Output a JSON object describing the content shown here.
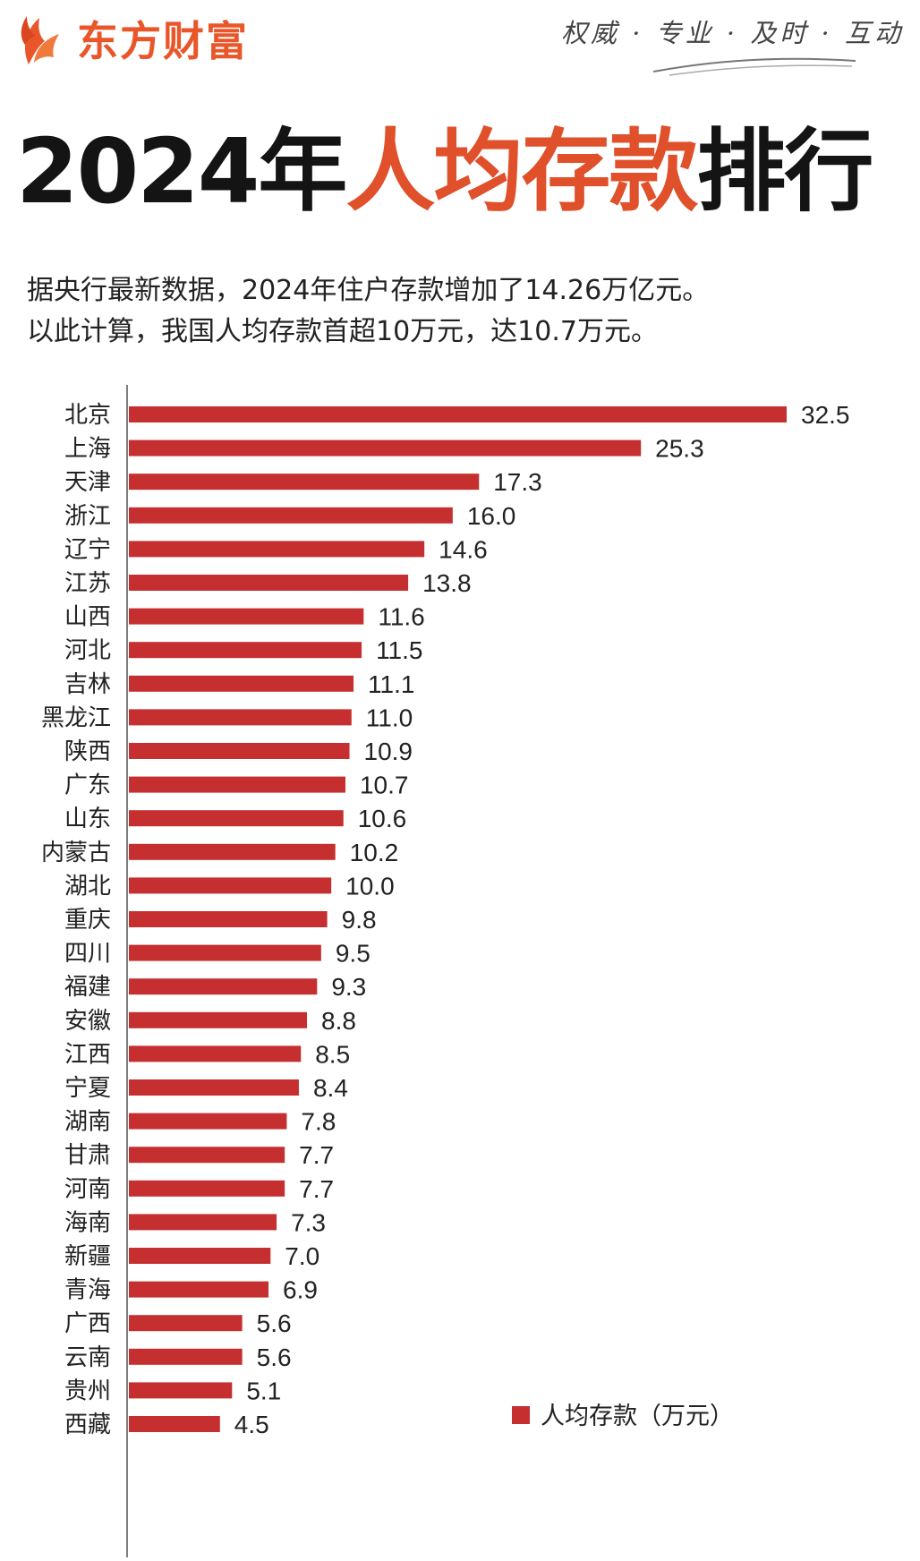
{
  "header": {
    "brand_name": "东方财富",
    "slogan": "权威 · 专业 · 及时 · 互动"
  },
  "title": {
    "part1": "2024年",
    "part2": "人均存款",
    "part3": "排行"
  },
  "description": {
    "line1": "据央行最新数据，2024年住户存款增加了14.26万亿元。",
    "line2": "以此计算，我国人均存款首超10万元，达10.7万元。"
  },
  "colors": {
    "bar": "#c62f2f",
    "accent": "#e0502a",
    "brand": "#e8562a"
  },
  "chart_data": {
    "type": "bar",
    "orientation": "horizontal",
    "categories": [
      "北京",
      "上海",
      "天津",
      "浙江",
      "辽宁",
      "江苏",
      "山西",
      "河北",
      "吉林",
      "黑龙江",
      "陕西",
      "广东",
      "山东",
      "内蒙古",
      "湖北",
      "重庆",
      "四川",
      "福建",
      "安徽",
      "江西",
      "宁夏",
      "湖南",
      "甘肃",
      "河南",
      "海南",
      "新疆",
      "青海",
      "广西",
      "云南",
      "贵州",
      "西藏"
    ],
    "series": [
      {
        "name": "人均存款（万元）",
        "values": [
          32.5,
          25.3,
          17.3,
          16.0,
          14.6,
          13.8,
          11.6,
          11.5,
          11.1,
          11.0,
          10.9,
          10.7,
          10.6,
          10.2,
          10.0,
          9.8,
          9.5,
          9.3,
          8.8,
          8.5,
          8.4,
          7.8,
          7.7,
          7.7,
          7.3,
          7.0,
          6.9,
          5.6,
          5.6,
          5.1,
          4.5
        ]
      }
    ],
    "value_labels": [
      "32.5",
      "25.3",
      "17.3",
      "16.0",
      "14.6",
      "13.8",
      "11.6",
      "11.5",
      "11.1",
      "11.0",
      "10.9",
      "10.7",
      "10.6",
      "10.2",
      "10.0",
      "9.8",
      "9.5",
      "9.3",
      "8.8",
      "8.5",
      "8.4",
      "7.8",
      "7.7",
      "7.7",
      "7.3",
      "7.0",
      "6.9",
      "5.6",
      "5.6",
      "5.1",
      "4.5"
    ],
    "legend": "人均存款（万元）",
    "legend_position": "bottom-right",
    "xlim": [
      0,
      32.5
    ],
    "grid": false
  }
}
